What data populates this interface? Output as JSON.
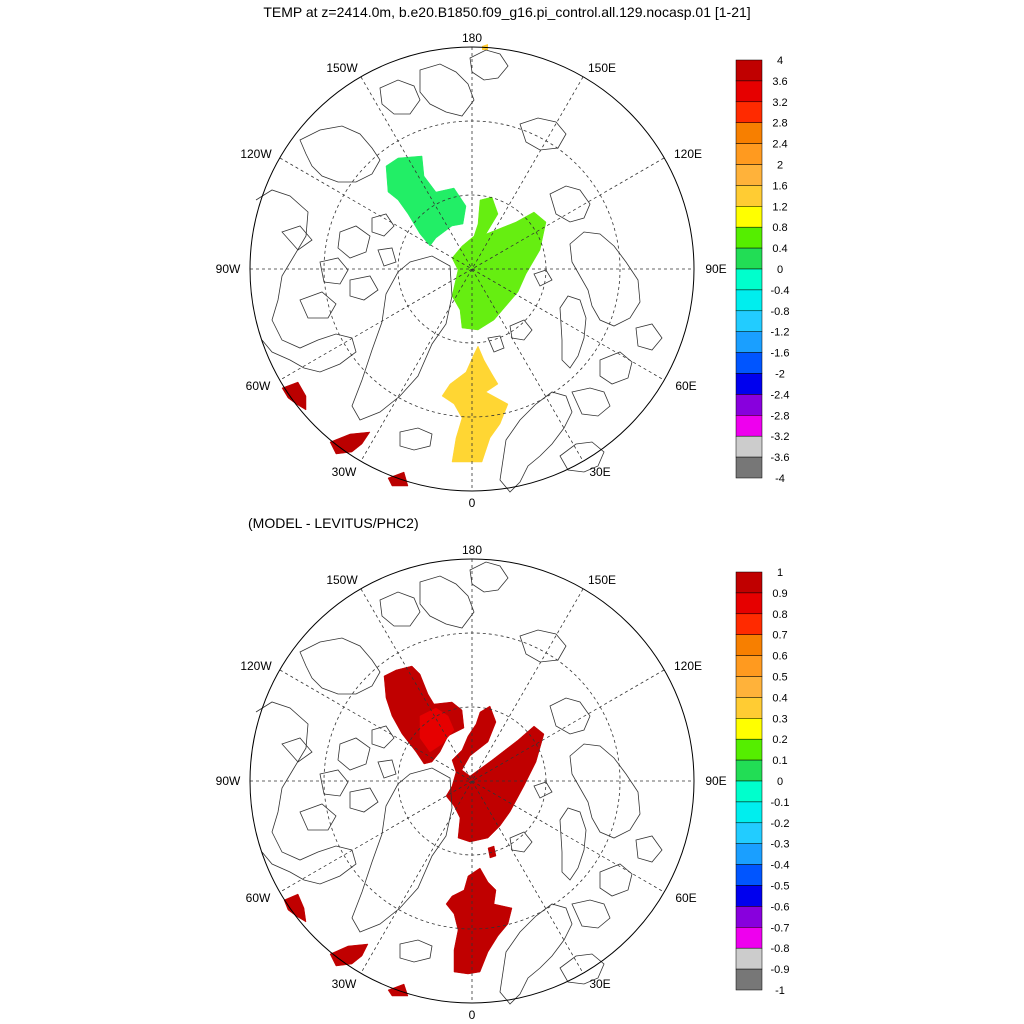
{
  "title": "TEMP at z=2414.0m, b.e20.B1850.f09_g16.pi_control.all.129.nocasp.01 [1-21]",
  "subtitle": "(MODEL - LEVITUS/PHC2)",
  "lon_labels": {
    "l180": "180",
    "l150w": "150W",
    "l150e": "150E",
    "l120w": "120W",
    "l120e": "120E",
    "l90w": "90W",
    "l90e": "90E",
    "l60w": "60W",
    "l60e": "60E",
    "l30w": "30W",
    "l30e": "30E",
    "l0": "0"
  },
  "colorbar_top": {
    "labels": [
      "4",
      "3.6",
      "3.2",
      "2.8",
      "2.4",
      "2",
      "1.6",
      "1.2",
      "0.8",
      "0.4",
      "0",
      "-0.4",
      "-0.8",
      "-1.2",
      "-1.6",
      "-2",
      "-2.4",
      "-2.8",
      "-3.2",
      "-3.6",
      "-4"
    ],
    "colors": [
      "#c00000",
      "#e60000",
      "#ff2a00",
      "#f77f00",
      "#ff9a1f",
      "#ffb23a",
      "#ffcc33",
      "#ffff00",
      "#55ee00",
      "#22dd55",
      "#00ffcc",
      "#00eeee",
      "#22ccff",
      "#1a9fff",
      "#0055ff",
      "#0000ee",
      "#8800dd",
      "#ee00ee",
      "#cccccc",
      "#777777"
    ]
  },
  "colorbar_bottom": {
    "labels": [
      "1",
      "0.9",
      "0.8",
      "0.7",
      "0.6",
      "0.5",
      "0.4",
      "0.3",
      "0.2",
      "0.1",
      "0",
      "-0.1",
      "-0.2",
      "-0.3",
      "-0.4",
      "-0.5",
      "-0.6",
      "-0.7",
      "-0.8",
      "-0.9",
      "-1"
    ],
    "colors": [
      "#c00000",
      "#e60000",
      "#ff2a00",
      "#f77f00",
      "#ff9a1f",
      "#ffb23a",
      "#ffcc33",
      "#ffff00",
      "#55ee00",
      "#22dd55",
      "#00ffcc",
      "#00eeee",
      "#22ccff",
      "#1a9fff",
      "#0055ff",
      "#0000ee",
      "#8800dd",
      "#ee00ee",
      "#cccccc",
      "#777777"
    ]
  },
  "field_colors": {
    "top_green": "#22ee66",
    "top_lime": "#66ee11",
    "top_yellow": "#ffd633",
    "top_red": "#bb0000",
    "bot_red": "#c00000",
    "bot_bright_red": "#e60000"
  }
}
